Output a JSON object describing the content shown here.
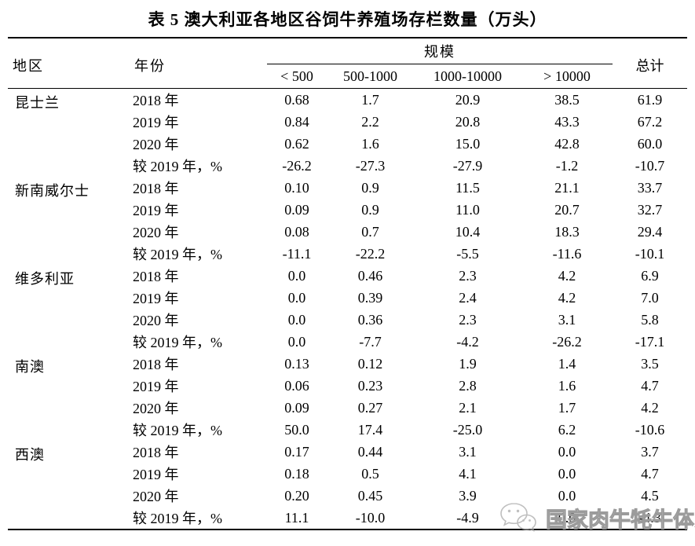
{
  "title": "表 5 澳大利亚各地区谷饲牛养殖场存栏数量（万头）",
  "table": {
    "header": {
      "region": "地区",
      "year": "年份",
      "scale": "规模",
      "total": "总计",
      "scale_cols": [
        "< 500",
        "500-1000",
        "1000-10000",
        "> 10000"
      ]
    },
    "groups": [
      {
        "region": "昆士兰",
        "rows": [
          {
            "label": "2018 年",
            "values": [
              "0.68",
              "1.7",
              "20.9",
              "38.5",
              "61.9"
            ]
          },
          {
            "label": "2019 年",
            "values": [
              "0.84",
              "2.2",
              "20.8",
              "43.3",
              "67.2"
            ]
          },
          {
            "label": "2020 年",
            "values": [
              "0.62",
              "1.6",
              "15.0",
              "42.8",
              "60.0"
            ]
          },
          {
            "label": "较 2019 年，%",
            "values": [
              "-26.2",
              "-27.3",
              "-27.9",
              "-1.2",
              "-10.7"
            ]
          }
        ]
      },
      {
        "region": "新南威尔士",
        "rows": [
          {
            "label": "2018 年",
            "values": [
              "0.10",
              "0.9",
              "11.5",
              "21.1",
              "33.7"
            ]
          },
          {
            "label": "2019 年",
            "values": [
              "0.09",
              "0.9",
              "11.0",
              "20.7",
              "32.7"
            ]
          },
          {
            "label": "2020 年",
            "values": [
              "0.08",
              "0.7",
              "10.4",
              "18.3",
              "29.4"
            ]
          },
          {
            "label": "较 2019 年，%",
            "values": [
              "-11.1",
              "-22.2",
              "-5.5",
              "-11.6",
              "-10.1"
            ]
          }
        ]
      },
      {
        "region": "维多利亚",
        "rows": [
          {
            "label": "2018 年",
            "values": [
              "0.0",
              "0.46",
              "2.3",
              "4.2",
              "6.9"
            ]
          },
          {
            "label": "2019 年",
            "values": [
              "0.0",
              "0.39",
              "2.4",
              "4.2",
              "7.0"
            ]
          },
          {
            "label": "2020 年",
            "values": [
              "0.0",
              "0.36",
              "2.3",
              "3.1",
              "5.8"
            ]
          },
          {
            "label": "较 2019 年，%",
            "values": [
              "0.0",
              "-7.7",
              "-4.2",
              "-26.2",
              "-17.1"
            ]
          }
        ]
      },
      {
        "region": "南澳",
        "rows": [
          {
            "label": "2018 年",
            "values": [
              "0.13",
              "0.12",
              "1.9",
              "1.4",
              "3.5"
            ]
          },
          {
            "label": "2019 年",
            "values": [
              "0.06",
              "0.23",
              "2.8",
              "1.6",
              "4.7"
            ]
          },
          {
            "label": "2020 年",
            "values": [
              "0.09",
              "0.27",
              "2.1",
              "1.7",
              "4.2"
            ]
          },
          {
            "label": "较 2019 年，%",
            "values": [
              "50.0",
              "17.4",
              "-25.0",
              "6.2",
              "-10.6"
            ]
          }
        ]
      },
      {
        "region": "西澳",
        "rows": [
          {
            "label": "2018 年",
            "values": [
              "0.17",
              "0.44",
              "3.1",
              "0.0",
              "3.7"
            ]
          },
          {
            "label": "2019 年",
            "values": [
              "0.18",
              "0.5",
              "4.1",
              "0.0",
              "4.7"
            ]
          },
          {
            "label": "2020 年",
            "values": [
              "0.20",
              "0.45",
              "3.9",
              "0.0",
              "4.5"
            ]
          },
          {
            "label": "较 2019 年，%",
            "values": [
              "11.1",
              "-10.0",
              "-4.9",
              "0.0",
              "-4.3"
            ]
          }
        ]
      }
    ]
  },
  "watermark": {
    "text": "国家肉牛牦牛体系",
    "icon": "wechat-icon",
    "color": "#9b9b9b"
  }
}
